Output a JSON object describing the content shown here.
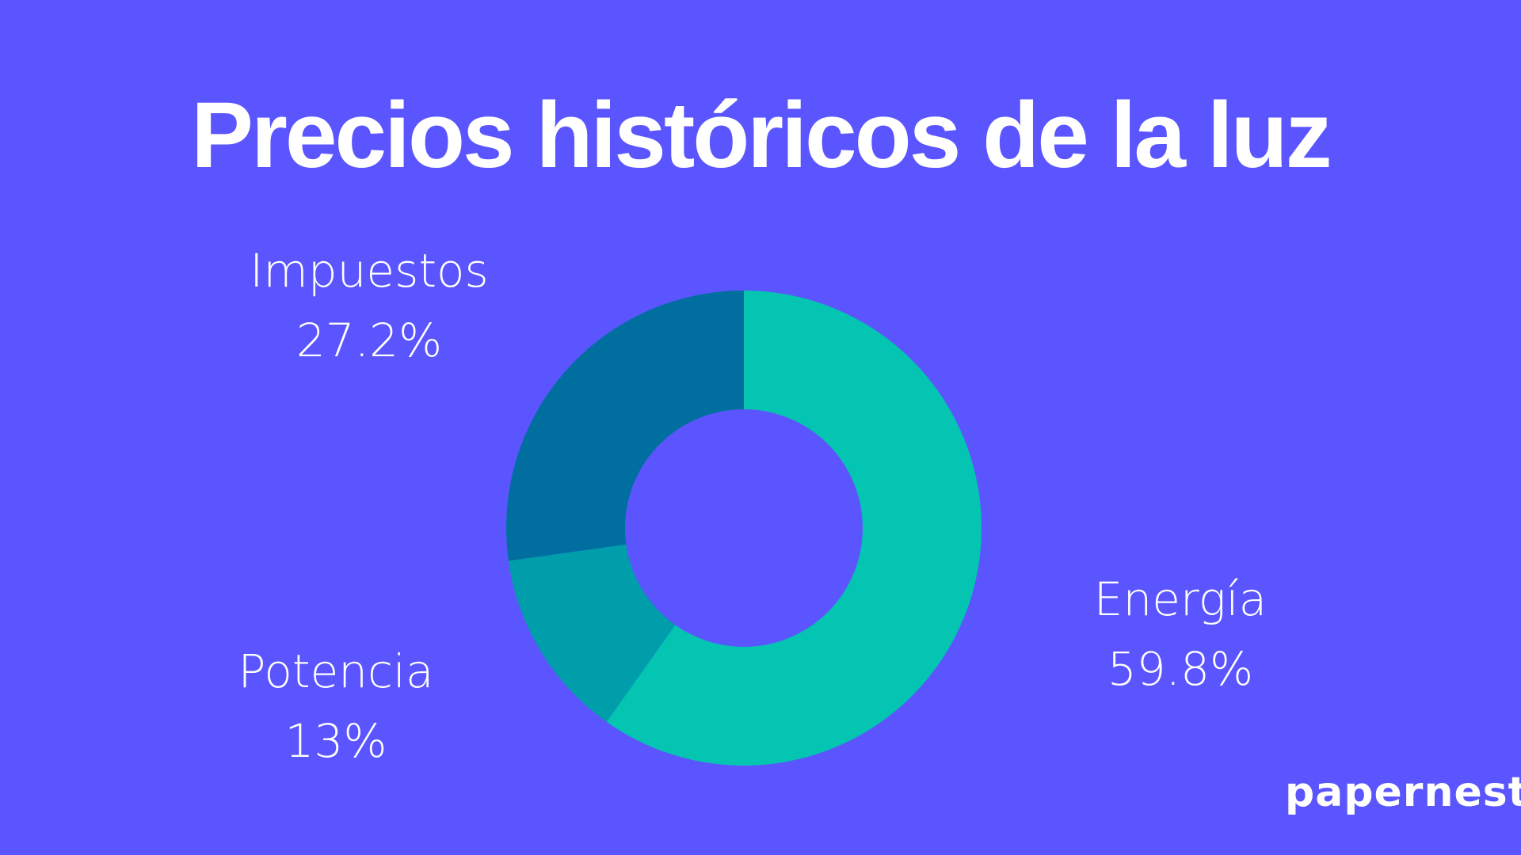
{
  "chart_data": {
    "type": "pie",
    "variant": "donut",
    "title": "Precios históricos de la luz",
    "slices": [
      {
        "label": "Energía",
        "value": 59.8,
        "value_label": "59.8%",
        "color": "#03c5b2"
      },
      {
        "label": "Potencia",
        "value": 13,
        "value_label": "13%",
        "color": "#009eab"
      },
      {
        "label": "Impuestos",
        "value": 27.2,
        "value_label": "27.2%",
        "color": "#006f9f"
      }
    ],
    "start_angle": "top, clockwise"
  },
  "brand": "papernest",
  "colors": {
    "background": "#5a55fe",
    "text": "#ffffff"
  }
}
